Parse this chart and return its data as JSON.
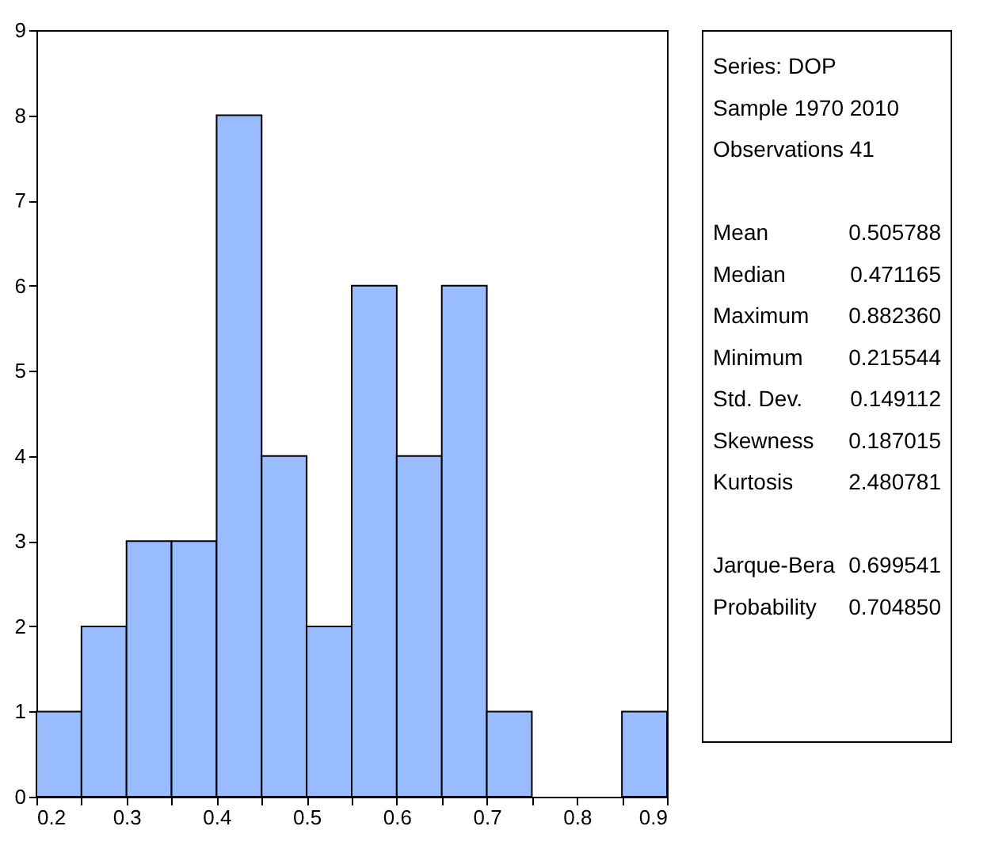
{
  "chart_data": {
    "type": "histogram",
    "bins": [
      0.2,
      0.25,
      0.3,
      0.35,
      0.4,
      0.45,
      0.5,
      0.55,
      0.6,
      0.65,
      0.7,
      0.75,
      0.8,
      0.85,
      0.9
    ],
    "values": [
      1,
      2,
      3,
      3,
      8,
      4,
      2,
      6,
      4,
      6,
      1,
      0,
      0,
      1
    ],
    "color": "#99bbff",
    "xlim": [
      0.2,
      0.9
    ],
    "xticks": [
      0.2,
      {
        "value": 0.25,
        "label": null
      },
      0.3,
      {
        "value": 0.35,
        "label": null
      },
      0.4,
      {
        "value": 0.45,
        "label": null
      },
      0.5,
      {
        "value": 0.55,
        "label": null
      },
      0.6,
      {
        "value": 0.65,
        "label": null
      },
      0.7,
      {
        "value": 0.75,
        "label": null
      },
      0.8,
      {
        "value": 0.85,
        "label": null
      },
      0.9
    ],
    "ylim": [
      0,
      9
    ],
    "yticks": [
      0,
      1,
      2,
      3,
      4,
      5,
      6,
      7,
      8,
      9
    ],
    "annotations": [
      "Series: DOP",
      "Sample 1970 2010",
      "Observations 41",
      "Mean 0.505788",
      "Median 0.471165",
      "Maximum 0.882360",
      "Minimum 0.215544",
      "Std. Dev. 0.149112",
      "Skewness 0.187015",
      "Kurtosis 2.480781",
      "Jarque-Bera 0.699541",
      "Probability 0.704850"
    ]
  }
}
